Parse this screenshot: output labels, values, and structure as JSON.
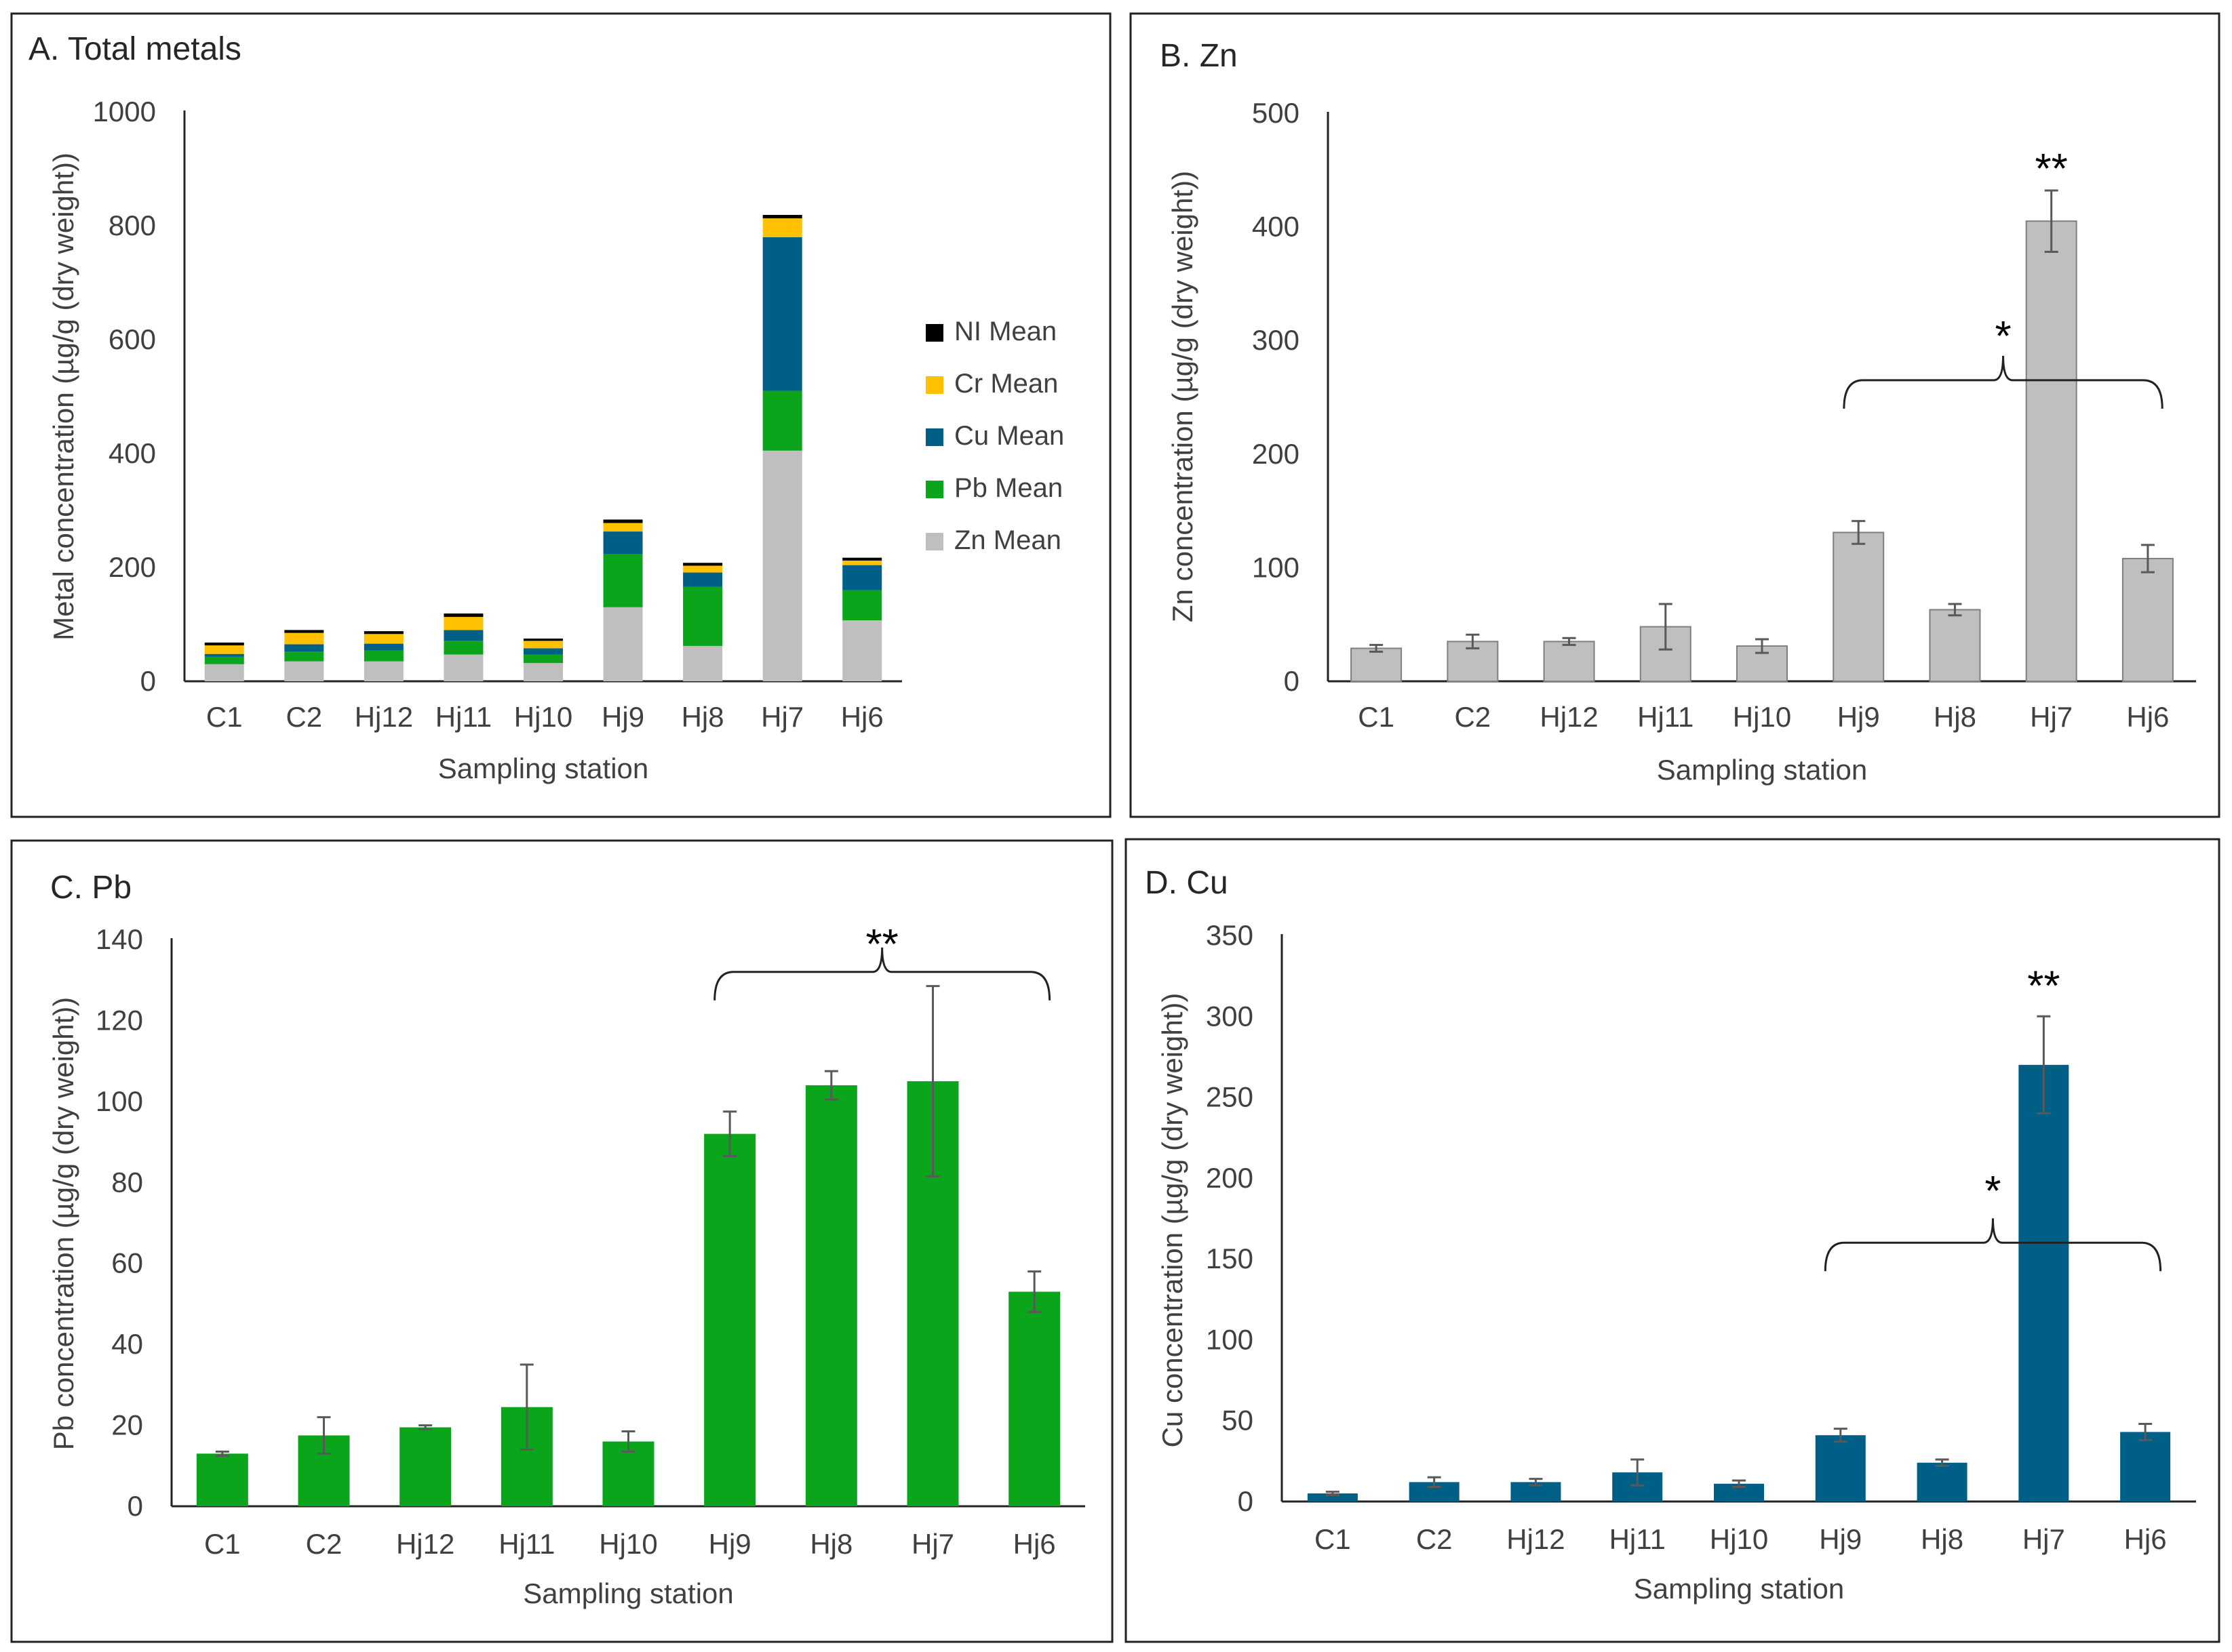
{
  "colors": {
    "Zn": "#bfbfbf",
    "Pb": "#0ba51c",
    "Cu": "#005f87",
    "Cr": "#ffc000",
    "Ni": "#000000"
  },
  "chart_data": [
    {
      "id": "A",
      "type": "bar",
      "stacked": true,
      "title": "A. Total metals",
      "xlabel": "Sampling station",
      "ylabel": "Metal concentration (µg/g (dry weight))",
      "ylim": [
        0,
        1000
      ],
      "yticks": [
        0,
        200,
        400,
        600,
        800,
        1000
      ],
      "categories": [
        "C1",
        "C2",
        "Hj12",
        "Hj11",
        "Hj10",
        "Hj9",
        "Hj8",
        "Hj7",
        "Hj6"
      ],
      "legend": [
        "NI Mean",
        "Cr Mean",
        "Cu Mean",
        "Pb Mean",
        "Zn Mean"
      ],
      "legend_position": "right",
      "series": [
        {
          "name": "Zn Mean",
          "color_key": "Zn",
          "values": [
            30,
            35,
            35,
            47,
            32,
            130,
            62,
            405,
            107
          ]
        },
        {
          "name": "Pb Mean",
          "color_key": "Pb",
          "values": [
            13,
            17,
            19,
            24,
            15,
            93,
            104,
            105,
            53
          ]
        },
        {
          "name": "Cu Mean",
          "color_key": "Cu",
          "values": [
            5,
            13,
            12,
            19,
            11,
            40,
            25,
            270,
            44
          ]
        },
        {
          "name": "Cr Mean",
          "color_key": "Cr",
          "values": [
            15,
            20,
            17,
            23,
            13,
            15,
            12,
            33,
            8
          ]
        },
        {
          "name": "NI Mean",
          "color_key": "Ni",
          "values": [
            5,
            5,
            5,
            6,
            4,
            6,
            5,
            6,
            5
          ]
        }
      ]
    },
    {
      "id": "B",
      "type": "bar",
      "title": "B. Zn",
      "xlabel": "Sampling station",
      "ylabel": "Zn concentration (µg/g (dry weight))",
      "ylim": [
        0,
        500
      ],
      "yticks": [
        0,
        100,
        200,
        300,
        400,
        500
      ],
      "categories": [
        "C1",
        "C2",
        "Hj12",
        "Hj11",
        "Hj10",
        "Hj9",
        "Hj8",
        "Hj7",
        "Hj6"
      ],
      "color_key": "Zn",
      "bar_border": "#7f7f7f",
      "values": [
        29,
        35,
        35,
        48,
        31,
        131,
        63,
        405,
        108
      ],
      "errors": [
        3,
        6,
        3,
        20,
        6,
        10,
        5,
        27,
        12
      ],
      "annotations": [
        {
          "text": "**",
          "category": "Hj7",
          "y": 460
        },
        {
          "text": "*",
          "from": "Hj9",
          "to": "Hj6",
          "y": 265,
          "star_y": 315
        }
      ]
    },
    {
      "id": "C",
      "type": "bar",
      "title": "C. Pb",
      "xlabel": "Sampling station",
      "ylabel": "Pb concentration (µg/g (dry weight))",
      "ylim": [
        0,
        140
      ],
      "yticks": [
        0,
        20,
        40,
        60,
        80,
        100,
        120,
        140
      ],
      "categories": [
        "C1",
        "C2",
        "Hj12",
        "Hj11",
        "Hj10",
        "Hj9",
        "Hj8",
        "Hj7",
        "Hj6"
      ],
      "color_key": "Pb",
      "values": [
        13,
        17.5,
        19.5,
        24.5,
        16,
        92,
        104,
        105,
        53
      ],
      "errors": [
        0.5,
        4.5,
        0.5,
        10.5,
        2.5,
        5.5,
        3.5,
        23.5,
        5
      ],
      "annotations": [
        {
          "text": "**",
          "from": "Hj9",
          "to": "Hj6",
          "y": 132,
          "star_y": 142
        }
      ]
    },
    {
      "id": "D",
      "type": "bar",
      "title": "D. Cu",
      "xlabel": "Sampling station",
      "ylabel": "Cu  concentration (µg/g (dry weight))",
      "ylim": [
        0,
        350
      ],
      "yticks": [
        0,
        50,
        100,
        150,
        200,
        250,
        300,
        350
      ],
      "categories": [
        "C1",
        "C2",
        "Hj12",
        "Hj11",
        "Hj10",
        "Hj9",
        "Hj8",
        "Hj7",
        "Hj6"
      ],
      "color_key": "Cu",
      "values": [
        5,
        12,
        12,
        18,
        11,
        41,
        24,
        270,
        43
      ],
      "errors": [
        1,
        3,
        2,
        8,
        2,
        4,
        2,
        30,
        5
      ],
      "annotations": [
        {
          "text": "**",
          "category": "Hj7",
          "y": 325
        },
        {
          "text": "*",
          "from": "Hj9",
          "to": "Hj6",
          "y": 160,
          "star_y": 200
        }
      ]
    }
  ]
}
